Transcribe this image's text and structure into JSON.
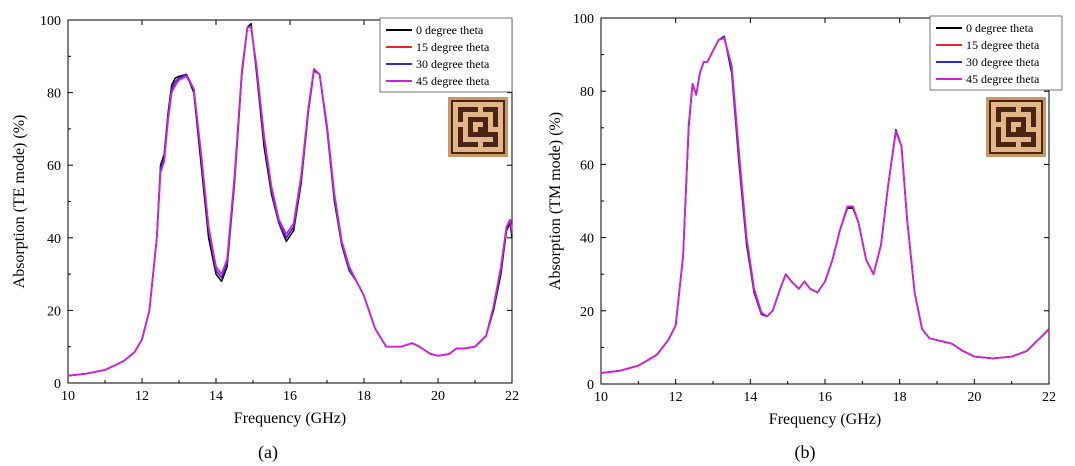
{
  "chart_data": [
    {
      "type": "line",
      "panel_label": "(a)",
      "xlabel": "Frequency (GHz)",
      "ylabel": "Absorption  (TE mode) (%)",
      "xlim": [
        10,
        22
      ],
      "ylim": [
        0,
        100
      ],
      "xticks": [
        10,
        12,
        14,
        16,
        18,
        20,
        22
      ],
      "yticks": [
        0,
        20,
        40,
        60,
        80,
        100
      ],
      "grid": false,
      "legend_position": "top-right",
      "inset": "unit-cell-pattern-image",
      "colors": [
        "#000000",
        "#e8262a",
        "#2a2ad0",
        "#d020d8"
      ],
      "series": [
        {
          "name": "0 degree theta",
          "x": [
            10,
            10.5,
            11,
            11.5,
            11.8,
            12,
            12.2,
            12.4,
            12.5,
            12.6,
            12.7,
            12.8,
            12.9,
            13,
            13.2,
            13.4,
            13.6,
            13.8,
            14,
            14.15,
            14.3,
            14.5,
            14.7,
            14.85,
            14.95,
            15.1,
            15.3,
            15.5,
            15.7,
            15.9,
            16.1,
            16.3,
            16.5,
            16.65,
            16.8,
            17,
            17.2,
            17.4,
            17.6,
            17.8,
            18,
            18.3,
            18.6,
            19,
            19.3,
            19.5,
            19.8,
            20,
            20.3,
            20.5,
            20.7,
            21,
            21.3,
            21.5,
            21.7,
            21.85,
            21.95,
            22
          ],
          "y": [
            2,
            2.6,
            3.6,
            6,
            8.5,
            12,
            20,
            40,
            60,
            63,
            74,
            82,
            84,
            84.5,
            85,
            80,
            60,
            40,
            30,
            28,
            32,
            55,
            85,
            98,
            99,
            85,
            65,
            52,
            44,
            39,
            42,
            55,
            75,
            86,
            85,
            70,
            50,
            38,
            31,
            28,
            24,
            15,
            10,
            10,
            11,
            10,
            8,
            7.5,
            8,
            9.5,
            9.5,
            10,
            13,
            20,
            30,
            42,
            44,
            40
          ]
        },
        {
          "name": "15 degree theta",
          "x": [
            10,
            10.5,
            11,
            11.5,
            11.8,
            12,
            12.2,
            12.4,
            12.5,
            12.6,
            12.7,
            12.8,
            12.9,
            13,
            13.2,
            13.4,
            13.6,
            13.8,
            14,
            14.15,
            14.3,
            14.5,
            14.7,
            14.85,
            14.95,
            15.1,
            15.3,
            15.5,
            15.7,
            15.9,
            16.1,
            16.3,
            16.5,
            16.65,
            16.8,
            17,
            17.2,
            17.4,
            17.6,
            17.8,
            18,
            18.3,
            18.6,
            19,
            19.3,
            19.5,
            19.8,
            20,
            20.3,
            20.5,
            20.7,
            21,
            21.3,
            21.5,
            21.7,
            21.85,
            21.95,
            22
          ],
          "y": [
            2,
            2.6,
            3.6,
            6,
            8.5,
            12,
            20,
            40,
            59,
            62,
            73,
            81,
            83,
            84,
            85,
            81,
            62,
            42,
            31,
            29,
            33,
            56,
            86,
            98,
            98,
            86,
            67,
            53,
            44,
            40,
            43,
            56,
            76,
            86.5,
            85,
            70,
            51,
            38,
            31,
            28,
            24,
            15,
            10,
            10,
            11,
            10,
            8,
            7.5,
            8,
            9.5,
            9.5,
            10,
            13,
            21,
            31,
            43,
            45,
            41
          ]
        },
        {
          "name": "30 degree theta",
          "x": [
            10,
            10.5,
            11,
            11.5,
            11.8,
            12,
            12.2,
            12.4,
            12.5,
            12.6,
            12.7,
            12.8,
            12.9,
            13,
            13.2,
            13.4,
            13.6,
            13.8,
            14,
            14.15,
            14.3,
            14.5,
            14.7,
            14.85,
            14.95,
            15.1,
            15.3,
            15.5,
            15.7,
            15.9,
            16.1,
            16.3,
            16.5,
            16.65,
            16.8,
            17,
            17.2,
            17.4,
            17.6,
            17.8,
            18,
            18.3,
            18.6,
            19,
            19.3,
            19.5,
            19.8,
            20,
            20.3,
            20.5,
            20.7,
            21,
            21.3,
            21.5,
            21.7,
            21.85,
            21.95,
            22
          ],
          "y": [
            2,
            2.6,
            3.6,
            6,
            8.5,
            12,
            20,
            40,
            59,
            62,
            73,
            81,
            83,
            84,
            85,
            81,
            62,
            42,
            31,
            29,
            33,
            56,
            86,
            98,
            98,
            86,
            67,
            53,
            44,
            40,
            43,
            56,
            76,
            86.5,
            85,
            70,
            51,
            38,
            31,
            28,
            24,
            15,
            10,
            10,
            11,
            10,
            8,
            7.5,
            8,
            9.5,
            9.5,
            10,
            13,
            21,
            31,
            43,
            45,
            41
          ]
        },
        {
          "name": "45 degree theta",
          "x": [
            10,
            10.5,
            11,
            11.5,
            11.8,
            12,
            12.2,
            12.4,
            12.5,
            12.6,
            12.7,
            12.8,
            12.9,
            13,
            13.2,
            13.4,
            13.6,
            13.8,
            14,
            14.15,
            14.3,
            14.5,
            14.7,
            14.85,
            14.95,
            15.1,
            15.3,
            15.5,
            15.7,
            15.9,
            16.1,
            16.3,
            16.5,
            16.65,
            16.8,
            17,
            17.2,
            17.4,
            17.6,
            17.8,
            18,
            18.3,
            18.6,
            19,
            19.3,
            19.5,
            19.8,
            20,
            20.3,
            20.5,
            20.7,
            21,
            21.3,
            21.5,
            21.7,
            21.85,
            21.95,
            22
          ],
          "y": [
            2,
            2.6,
            3.6,
            6,
            8.5,
            12,
            20,
            40,
            58,
            61,
            72,
            80,
            82,
            83.5,
            84.5,
            81,
            63,
            43,
            32,
            30,
            34,
            57,
            86,
            98,
            98,
            87,
            68,
            54,
            45,
            41,
            44,
            57,
            76,
            86.5,
            85,
            71,
            52,
            39,
            32,
            28,
            24,
            15,
            10,
            10,
            11,
            10,
            8,
            7.5,
            8,
            9.5,
            9.5,
            10,
            13,
            21,
            32,
            43,
            45,
            42
          ]
        }
      ]
    },
    {
      "type": "line",
      "panel_label": "(b)",
      "xlabel": "Frequency (GHz)",
      "ylabel": "Absorption (TM mode) (%)",
      "xlim": [
        10,
        22
      ],
      "ylim": [
        0,
        100
      ],
      "xticks": [
        10,
        12,
        14,
        16,
        18,
        20,
        22
      ],
      "yticks": [
        0,
        20,
        40,
        60,
        80,
        100
      ],
      "grid": false,
      "legend_position": "top-right",
      "inset": "unit-cell-pattern-image",
      "colors": [
        "#000000",
        "#e8262a",
        "#2a2ad0",
        "#d020d8"
      ],
      "series": [
        {
          "name": "0 degree theta",
          "x": [
            10,
            10.5,
            11,
            11.5,
            11.8,
            12,
            12.2,
            12.35,
            12.45,
            12.55,
            12.65,
            12.75,
            12.85,
            13,
            13.15,
            13.3,
            13.5,
            13.7,
            13.9,
            14.1,
            14.3,
            14.45,
            14.6,
            14.8,
            14.95,
            15.1,
            15.3,
            15.45,
            15.6,
            15.8,
            16,
            16.2,
            16.4,
            16.6,
            16.75,
            16.9,
            17.1,
            17.3,
            17.5,
            17.7,
            17.9,
            18.05,
            18.2,
            18.4,
            18.6,
            18.8,
            19,
            19.2,
            19.4,
            19.7,
            20,
            20.5,
            21,
            21.4,
            21.7,
            21.9,
            22
          ],
          "y": [
            3,
            3.6,
            5,
            8,
            12,
            16,
            35,
            70,
            82,
            79,
            85,
            88,
            88,
            91,
            94,
            95,
            85,
            60,
            38,
            25,
            19,
            18.5,
            20,
            26,
            30,
            28,
            26,
            28,
            26,
            25,
            28,
            34,
            42,
            48,
            48,
            44,
            34,
            30,
            38,
            55,
            69,
            65,
            45,
            25,
            15,
            12.5,
            12,
            11.5,
            11,
            9,
            7.5,
            7,
            7.5,
            9,
            12,
            14,
            15
          ]
        },
        {
          "name": "15 degree theta",
          "x": [
            10,
            10.5,
            11,
            11.5,
            11.8,
            12,
            12.2,
            12.35,
            12.45,
            12.55,
            12.65,
            12.75,
            12.85,
            13,
            13.15,
            13.3,
            13.5,
            13.7,
            13.9,
            14.1,
            14.3,
            14.45,
            14.6,
            14.8,
            14.95,
            15.1,
            15.3,
            15.45,
            15.6,
            15.8,
            16,
            16.2,
            16.4,
            16.6,
            16.75,
            16.9,
            17.1,
            17.3,
            17.5,
            17.7,
            17.9,
            18.05,
            18.2,
            18.4,
            18.6,
            18.8,
            19,
            19.2,
            19.4,
            19.7,
            20,
            20.5,
            21,
            21.4,
            21.7,
            21.9,
            22
          ],
          "y": [
            3,
            3.6,
            5,
            8,
            12,
            16,
            35,
            70,
            82,
            79,
            85,
            88,
            88,
            91,
            94,
            95,
            86,
            61,
            39,
            25,
            19,
            18.5,
            20,
            26,
            30,
            28,
            26,
            28,
            26,
            25,
            28,
            34,
            42,
            48.5,
            48.5,
            44,
            34,
            30,
            38,
            55,
            69.5,
            65,
            45,
            25,
            15,
            12.5,
            12,
            11.5,
            11,
            9,
            7.5,
            7,
            7.5,
            9,
            12,
            14,
            15
          ]
        },
        {
          "name": "30 degree theta",
          "x": [
            10,
            10.5,
            11,
            11.5,
            11.8,
            12,
            12.2,
            12.35,
            12.45,
            12.55,
            12.65,
            12.75,
            12.85,
            13,
            13.15,
            13.3,
            13.5,
            13.7,
            13.9,
            14.1,
            14.3,
            14.45,
            14.6,
            14.8,
            14.95,
            15.1,
            15.3,
            15.45,
            15.6,
            15.8,
            16,
            16.2,
            16.4,
            16.6,
            16.75,
            16.9,
            17.1,
            17.3,
            17.5,
            17.7,
            17.9,
            18.05,
            18.2,
            18.4,
            18.6,
            18.8,
            19,
            19.2,
            19.4,
            19.7,
            20,
            20.5,
            21,
            21.4,
            21.7,
            21.9,
            22
          ],
          "y": [
            3,
            3.6,
            5,
            8,
            12,
            16,
            35,
            70,
            82,
            79,
            85,
            88,
            88,
            91,
            94,
            95,
            86,
            61,
            39,
            25,
            19,
            18.5,
            20,
            26,
            30,
            28,
            26,
            28,
            26,
            25,
            28,
            34,
            42,
            48.5,
            48.5,
            44,
            34,
            30,
            38,
            55,
            69.5,
            65,
            45,
            25,
            15,
            12.5,
            12,
            11.5,
            11,
            9,
            7.5,
            7,
            7.5,
            9,
            12,
            14,
            15
          ]
        },
        {
          "name": "45 degree theta",
          "x": [
            10,
            10.5,
            11,
            11.5,
            11.8,
            12,
            12.2,
            12.35,
            12.45,
            12.55,
            12.65,
            12.75,
            12.85,
            13,
            13.15,
            13.3,
            13.5,
            13.7,
            13.9,
            14.1,
            14.3,
            14.45,
            14.6,
            14.8,
            14.95,
            15.1,
            15.3,
            15.45,
            15.6,
            15.8,
            16,
            16.2,
            16.4,
            16.6,
            16.75,
            16.9,
            17.1,
            17.3,
            17.5,
            17.7,
            17.9,
            18.05,
            18.2,
            18.4,
            18.6,
            18.8,
            19,
            19.2,
            19.4,
            19.7,
            20,
            20.5,
            21,
            21.4,
            21.7,
            21.9,
            22
          ],
          "y": [
            3,
            3.6,
            5,
            8,
            12,
            16,
            35,
            71,
            82,
            79,
            85,
            88,
            88,
            91,
            94,
            94.5,
            87,
            63,
            40,
            26,
            19.5,
            18.5,
            20,
            26,
            30,
            28,
            26,
            28,
            26,
            25,
            28,
            34,
            42,
            48.5,
            48.5,
            44,
            34,
            30,
            38,
            55,
            69,
            65,
            45,
            25,
            15,
            12.5,
            12,
            11.5,
            11,
            9,
            7.5,
            7,
            7.5,
            9,
            12,
            14,
            15
          ]
        }
      ]
    }
  ]
}
